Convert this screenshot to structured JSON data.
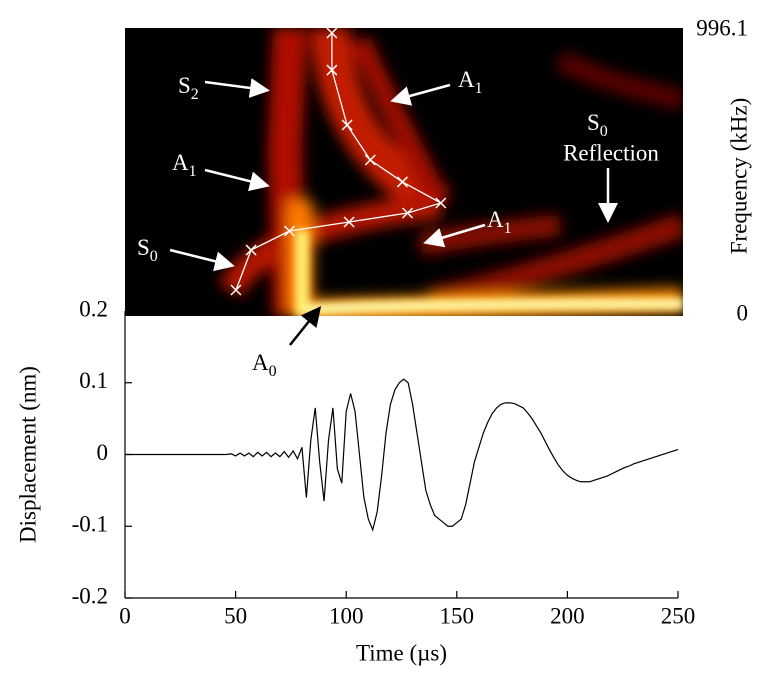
{
  "chart_data": [
    {
      "type": "spectrogram",
      "y_label": "Frequency (kHz)",
      "xlim": [
        0,
        250
      ],
      "ylim": [
        0,
        996.1
      ],
      "yticks": [
        0,
        996.1
      ],
      "color": "#ffffff",
      "x": [
        49.7,
        56.5,
        73.7,
        100.4,
        126.6,
        141.5,
        124.3,
        109.9,
        99.5,
        92.7,
        92.7
      ],
      "values": [
        87.4,
        227,
        293.6,
        325,
        356.5,
        391.5,
        465,
        541.7,
        664,
        856,
        985.6
      ],
      "annotations": [
        {
          "text": "S",
          "sub": "2"
        },
        {
          "text": "A",
          "sub": "1"
        },
        {
          "text": "A",
          "sub": "1"
        },
        {
          "text": "S",
          "sub": "0",
          "line2": "Reflection"
        },
        {
          "text": "A",
          "sub": "1"
        },
        {
          "text": "S",
          "sub": "0"
        },
        {
          "text": "A",
          "sub": "0"
        }
      ]
    },
    {
      "type": "line",
      "x_label": "Time (µs)",
      "y_label": "Displacement (nm)",
      "color": "#000000",
      "xlim": [
        0,
        250
      ],
      "xticks": [
        0,
        50,
        100,
        150,
        200,
        250
      ],
      "ylim": [
        -0.2,
        0.2
      ],
      "yticks": [
        -0.2,
        -0.1,
        0,
        0.1,
        0.2
      ],
      "x": [
        0,
        46,
        48,
        50,
        52,
        54,
        56,
        58,
        60,
        62,
        64,
        66,
        68,
        70,
        72,
        74,
        76,
        78,
        80,
        82,
        84,
        86,
        88,
        90,
        92,
        94,
        96,
        98,
        100,
        102,
        104,
        106,
        108,
        110,
        112,
        114,
        116,
        118,
        120,
        122,
        124,
        126,
        128,
        130,
        132,
        134,
        136,
        138,
        140,
        142,
        144,
        146,
        148,
        150,
        152,
        154,
        156,
        158,
        160,
        162,
        164,
        166,
        168,
        170,
        172,
        174,
        176,
        178,
        180,
        182,
        184,
        186,
        188,
        190,
        192,
        194,
        196,
        198,
        200,
        202,
        204,
        206,
        208,
        210,
        212,
        214,
        216,
        218,
        220,
        222,
        224,
        226,
        228,
        230,
        232,
        234,
        236,
        238,
        240,
        242,
        244,
        246,
        248,
        250
      ],
      "values": [
        0,
        0,
        0.001,
        -0.002,
        0.002,
        -0.002,
        0.002,
        -0.003,
        0.003,
        -0.002,
        0.003,
        -0.003,
        0.002,
        -0.003,
        0.004,
        -0.004,
        0.005,
        -0.006,
        0.01,
        -0.06,
        0.02,
        0.065,
        -0.01,
        -0.065,
        0.02,
        0.065,
        -0.02,
        -0.04,
        0.06,
        0.085,
        0.06,
        0.0,
        -0.06,
        -0.09,
        -0.105,
        -0.08,
        -0.03,
        0.03,
        0.07,
        0.09,
        0.1,
        0.105,
        0.1,
        0.07,
        0.03,
        -0.01,
        -0.05,
        -0.07,
        -0.085,
        -0.09,
        -0.095,
        -0.1,
        -0.1,
        -0.095,
        -0.09,
        -0.07,
        -0.04,
        -0.01,
        0.01,
        0.03,
        0.045,
        0.057,
        0.065,
        0.07,
        0.072,
        0.072,
        0.071,
        0.068,
        0.065,
        0.058,
        0.05,
        0.04,
        0.03,
        0.018,
        0.006,
        -0.005,
        -0.015,
        -0.023,
        -0.029,
        -0.033,
        -0.036,
        -0.038,
        -0.038,
        -0.038,
        -0.036,
        -0.034,
        -0.032,
        -0.03,
        -0.027,
        -0.024,
        -0.021,
        -0.018,
        -0.016,
        -0.013,
        -0.011,
        -0.009,
        -0.007,
        -0.005,
        -0.003,
        -0.001,
        0.001,
        0.003,
        0.005,
        0.007
      ]
    }
  ]
}
